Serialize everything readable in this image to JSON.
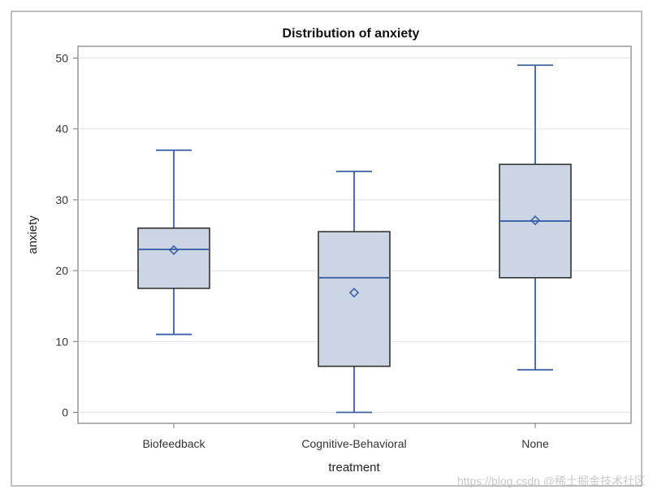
{
  "chart_data": {
    "type": "box",
    "title": "Distribution of anxiety",
    "xlabel": "treatment",
    "ylabel": "anxiety",
    "ylim": [
      -1.5,
      52
    ],
    "yticks": [
      "0",
      "10",
      "20",
      "30",
      "40",
      "50"
    ],
    "grid": true,
    "categories": [
      "Biofeedback",
      "Cognitive-Behavioral",
      "None"
    ],
    "boxes": [
      {
        "category": "Biofeedback",
        "min": 11,
        "q1": 17.5,
        "median": 23,
        "q3": 26,
        "max": 37,
        "mean": 22.9
      },
      {
        "category": "Cognitive-Behavioral",
        "min": 0,
        "q1": 6.5,
        "median": 19,
        "q3": 25.5,
        "max": 34,
        "mean": 16.9
      },
      {
        "category": "None",
        "min": 6,
        "q1": 19,
        "median": 27,
        "q3": 35,
        "max": 49,
        "mean": 27.1
      }
    ],
    "colors": {
      "box_fill": "#cbd5e4",
      "whisker": "#3a5fa6",
      "box_edge": "#333333",
      "grid": "#e4e4e4"
    }
  },
  "watermark": "https://blog.csdn @稀土掘金技术社区"
}
